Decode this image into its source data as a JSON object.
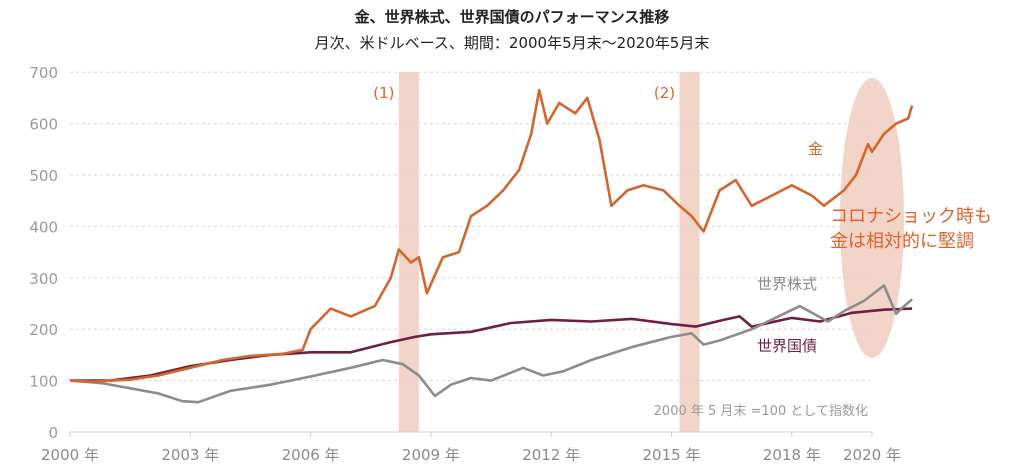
{
  "chart_data": {
    "type": "line",
    "title": "金、世界株式、世界国債のパフォーマンス推移",
    "subtitle": "月次、米ドルベース、期間：2000年5月末〜2020年5月末",
    "ylim": [
      0,
      700
    ],
    "yticks": [
      "0",
      "100",
      "200",
      "300",
      "400",
      "500",
      "600",
      "700"
    ],
    "yvals": [
      0,
      100,
      200,
      300,
      400,
      500,
      600,
      700
    ],
    "xlim": [
      2000.0,
      2020.0
    ],
    "xticks": [
      {
        "v": 2000,
        "label": "2000 年"
      },
      {
        "v": 2003,
        "label": "2003 年"
      },
      {
        "v": 2006,
        "label": "2006 年"
      },
      {
        "v": 2009,
        "label": "2009 年"
      },
      {
        "v": 2012,
        "label": "2012 年"
      },
      {
        "v": 2015,
        "label": "2015 年"
      },
      {
        "v": 2018,
        "label": "2018 年"
      },
      {
        "v": 2020,
        "label": "2020 年"
      }
    ],
    "grid": "horizontal dashed",
    "series": [
      {
        "name": "金",
        "color": "#d2662f",
        "x": [
          2000,
          2000.6,
          2001.5,
          2002.2,
          2003,
          2003.8,
          2004.5,
          2005.3,
          2005.8,
          2006,
          2006.5,
          2007,
          2007.6,
          2008,
          2008.2,
          2008.5,
          2008.7,
          2008.9,
          2009.3,
          2009.7,
          2010,
          2010.4,
          2010.8,
          2011.2,
          2011.5,
          2011.7,
          2011.9,
          2012.2,
          2012.6,
          2012.9,
          2013.2,
          2013.5,
          2013.9,
          2014.3,
          2014.8,
          2015.2,
          2015.5,
          2015.8,
          2016.2,
          2016.6,
          2017,
          2017.5,
          2018,
          2018.5,
          2018.8,
          2019.3,
          2019.6,
          2019.9,
          2020,
          2020.3,
          2020.6,
          2020.9,
          2021
        ],
        "y": [
          100,
          98,
          102,
          110,
          125,
          140,
          148,
          152,
          160,
          200,
          240,
          225,
          245,
          300,
          355,
          330,
          340,
          270,
          340,
          350,
          420,
          440,
          470,
          510,
          580,
          665,
          600,
          640,
          620,
          650,
          570,
          440,
          470,
          480,
          470,
          440,
          420,
          390,
          470,
          490,
          440,
          460,
          480,
          460,
          440,
          470,
          500,
          560,
          545,
          580,
          600,
          610,
          635
        ]
      },
      {
        "name": "世界株式",
        "color": "#8c8c8c",
        "x": [
          2000,
          2000.8,
          2001.5,
          2002.2,
          2002.8,
          2003.2,
          2004,
          2005,
          2006,
          2007,
          2007.8,
          2008.3,
          2008.7,
          2009.1,
          2009.5,
          2010,
          2010.5,
          2011.3,
          2011.8,
          2012.3,
          2013,
          2014,
          2015,
          2015.5,
          2015.8,
          2016.2,
          2017,
          2017.8,
          2018.2,
          2018.5,
          2018.9,
          2019.3,
          2019.8,
          2020.3,
          2020.6,
          2020.8,
          2021
        ],
        "y": [
          100,
          95,
          85,
          75,
          60,
          58,
          80,
          92,
          108,
          125,
          140,
          132,
          110,
          70,
          92,
          105,
          100,
          125,
          110,
          118,
          140,
          165,
          185,
          192,
          170,
          178,
          200,
          230,
          245,
          232,
          215,
          235,
          255,
          285,
          230,
          245,
          258
        ]
      },
      {
        "name": "世界国債",
        "color": "#6d1f45",
        "x": [
          2000,
          2001,
          2002,
          2003,
          2004,
          2005,
          2006,
          2007,
          2008,
          2008.6,
          2009,
          2010,
          2011,
          2012,
          2013,
          2014,
          2015,
          2015.6,
          2016.3,
          2016.7,
          2017,
          2018,
          2018.7,
          2019.5,
          2020.3,
          2021
        ],
        "y": [
          100,
          100,
          110,
          128,
          140,
          150,
          155,
          155,
          175,
          185,
          190,
          195,
          212,
          218,
          215,
          220,
          210,
          205,
          218,
          225,
          205,
          222,
          215,
          232,
          238,
          240
        ]
      }
    ],
    "shaded_periods": [
      {
        "label": "(1)",
        "from": 2008.2,
        "to": 2008.7
      },
      {
        "label": "(2)",
        "from": 2015.2,
        "to": 2015.7
      }
    ],
    "annotations": {
      "gold_label": "金",
      "stocks_label": "世界株式",
      "bonds_label": "世界国債",
      "corona_line1": "コロナショック時も",
      "corona_line2": "金は相対的に堅調",
      "note": "2000 年 5 月末 =100 として指数化"
    }
  }
}
